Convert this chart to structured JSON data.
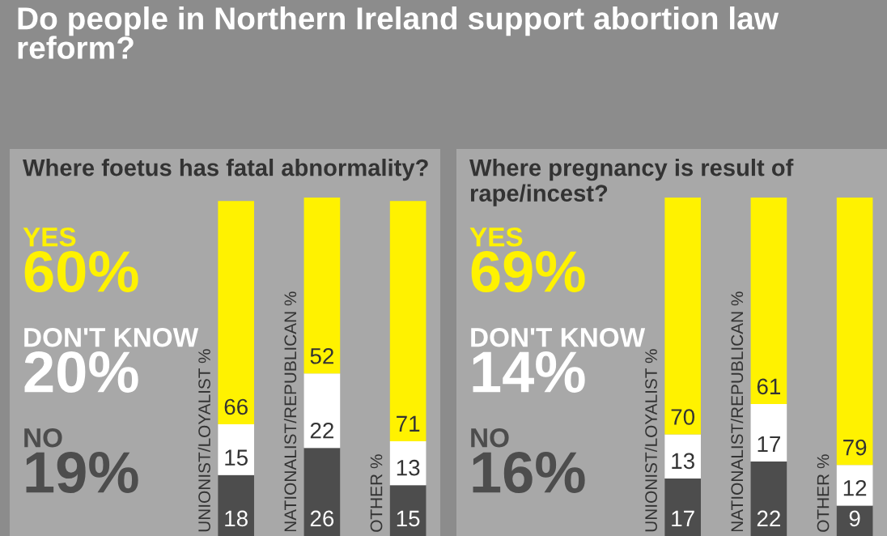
{
  "chart_data": [
    {
      "type": "bar",
      "stacked": true,
      "data_labels": true,
      "title": "Do people in Northern Ireland support abortion law reform?",
      "subtitle": "Where foetus has fatal abnormality?",
      "categories": [
        "UNIONIST/LOYALIST %",
        "NATIONALIST/REPUBLICAN %",
        "OTHER %"
      ],
      "series": [
        {
          "name": "NO",
          "color": "#4d4d4d",
          "values": [
            18,
            26,
            15
          ]
        },
        {
          "name": "DON'T KNOW",
          "color": "#ffffff",
          "values": [
            15,
            22,
            13
          ]
        },
        {
          "name": "YES",
          "color": "#fff200",
          "values": [
            66,
            52,
            71
          ]
        }
      ],
      "annotations": [
        "19%",
        "20%",
        "60%"
      ]
    },
    {
      "type": "bar",
      "stacked": true,
      "data_labels": true,
      "subtitle": "Where pregnancy is result of rape/incest?",
      "categories": [
        "UNIONIST/LOYALIST %",
        "NATIONALIST/REPUBLICAN %",
        "OTHER %"
      ],
      "series": [
        {
          "name": "NO",
          "color": "#4d4d4d",
          "values": [
            17,
            22,
            9
          ]
        },
        {
          "name": "DON'T KNOW",
          "color": "#ffffff",
          "values": [
            13,
            17,
            12
          ]
        },
        {
          "name": "YES",
          "color": "#fff200",
          "values": [
            70,
            61,
            79
          ]
        }
      ],
      "annotations": [
        "16%",
        "14%",
        "69%"
      ]
    }
  ]
}
